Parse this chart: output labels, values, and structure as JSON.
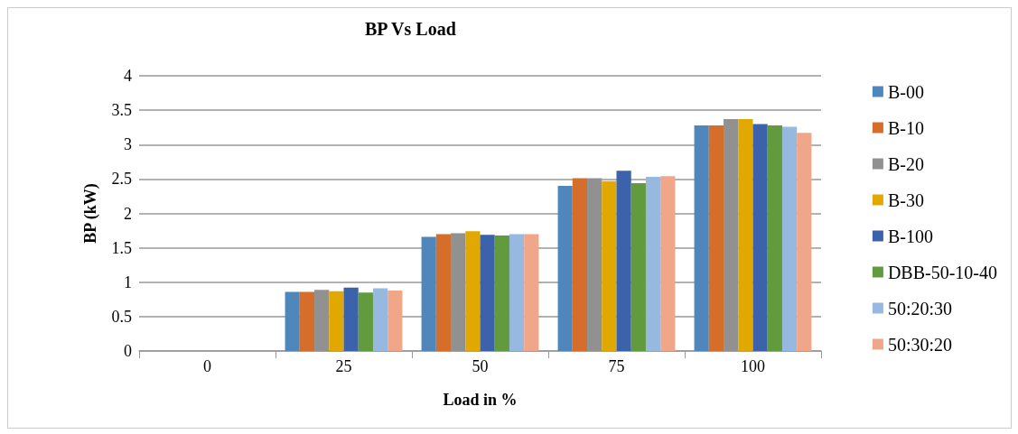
{
  "chart_data": {
    "type": "bar",
    "title": "BP Vs Load",
    "xlabel": "Load in %",
    "ylabel": "BP (kW)",
    "categories": [
      "0",
      "25",
      "50",
      "75",
      "100"
    ],
    "series": [
      {
        "name": "B-00",
        "color": "#4f87bc",
        "values": [
          0,
          0.86,
          1.66,
          2.4,
          3.28
        ]
      },
      {
        "name": "B-10",
        "color": "#d46e2a",
        "values": [
          0,
          0.86,
          1.7,
          2.51,
          3.28
        ]
      },
      {
        "name": "B-20",
        "color": "#919191",
        "values": [
          0,
          0.89,
          1.71,
          2.51,
          3.37
        ]
      },
      {
        "name": "B-30",
        "color": "#e0a800",
        "values": [
          0,
          0.87,
          1.74,
          2.47,
          3.37
        ]
      },
      {
        "name": "B-100",
        "color": "#3b62ab",
        "values": [
          0,
          0.92,
          1.69,
          2.62,
          3.3
        ]
      },
      {
        "name": "DBB-50-10-40",
        "color": "#629a3e",
        "values": [
          0,
          0.85,
          1.68,
          2.44,
          3.28
        ]
      },
      {
        "name": "50:20:30",
        "color": "#97b9df",
        "values": [
          0,
          0.91,
          1.7,
          2.53,
          3.26
        ]
      },
      {
        "name": "50:30:20",
        "color": "#f0a688",
        "values": [
          0,
          0.88,
          1.7,
          2.54,
          3.17
        ]
      }
    ],
    "ylim": [
      0,
      4
    ],
    "yticks": [
      0,
      0.5,
      1,
      1.5,
      2,
      2.5,
      3,
      3.5,
      4
    ],
    "grid": "y",
    "legend": "right"
  }
}
